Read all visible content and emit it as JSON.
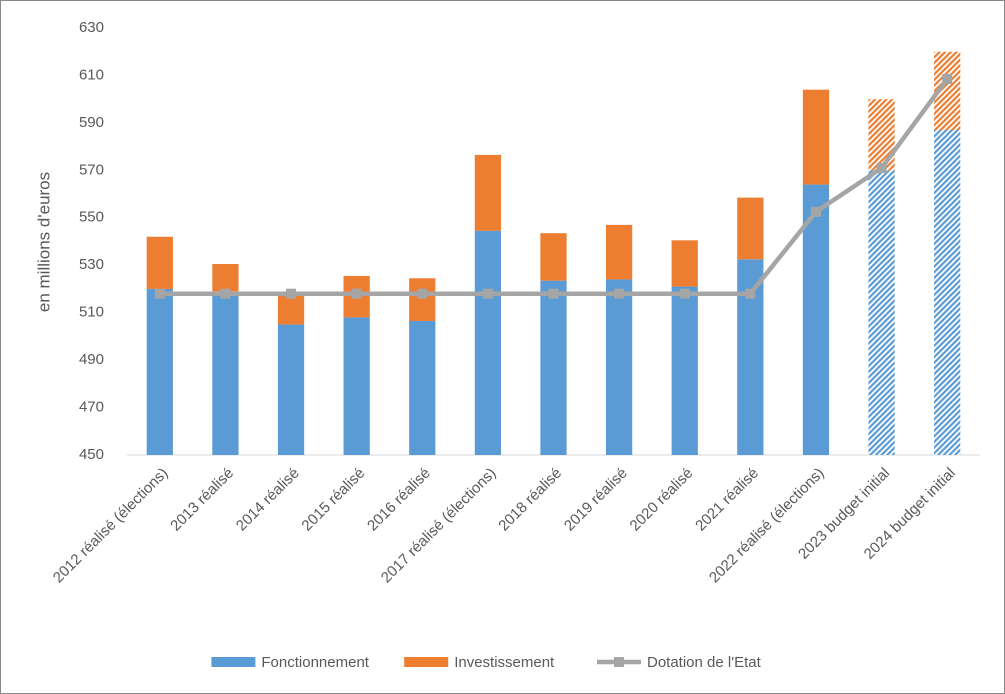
{
  "chart_data": {
    "type": "bar",
    "y_label": "en millions d'euros",
    "categories": [
      "2012 réalisé (élections)",
      "2013 réalisé",
      "2014 réalisé",
      "2015 réalisé",
      "2016 réalisé",
      "2017 réalisé (élections)",
      "2018 réalisé",
      "2019 réalisé",
      "2020 réalisé",
      "2021 réalisé",
      "2022 réalisé (élections)",
      "2023 budget initial",
      "2024 budget initial"
    ],
    "hatched": [
      false,
      false,
      false,
      false,
      false,
      false,
      false,
      false,
      false,
      false,
      false,
      true,
      true
    ],
    "series": [
      {
        "name": "Fonctionnement",
        "color": "#5b9bd5",
        "kind": "bar",
        "values": [
          520,
          519,
          505,
          508,
          506.5,
          544.5,
          523.5,
          524,
          521,
          532.5,
          564,
          570,
          587
        ]
      },
      {
        "name": "Investissement",
        "color": "#ed7d31",
        "kind": "bar",
        "values": [
          22,
          11.5,
          13,
          17.5,
          18,
          32,
          20,
          23,
          19.5,
          26,
          40,
          30,
          33
        ]
      },
      {
        "name": "Dotation de l'Etat",
        "color": "#a5a5a5",
        "kind": "line",
        "values": [
          518,
          518,
          518,
          518,
          518,
          518,
          518,
          518,
          518,
          518,
          552.5,
          571,
          608.5
        ]
      }
    ],
    "ylim": [
      450,
      630
    ],
    "yticks": [
      450,
      470,
      490,
      510,
      530,
      550,
      570,
      590,
      610,
      630
    ],
    "grid": false
  }
}
